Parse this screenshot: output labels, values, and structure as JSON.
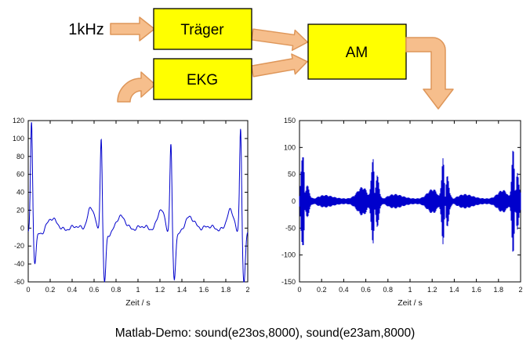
{
  "diagram": {
    "input_label": "1kHz",
    "blocks": [
      {
        "id": "traeger",
        "label": "Träger"
      },
      {
        "id": "ekg",
        "label": "EKG"
      },
      {
        "id": "am",
        "label": "AM"
      }
    ],
    "block_fill": "#FFFF00",
    "block_border": "#000000",
    "arrow_fill": "#F6BE8C",
    "arrow_stroke": "#DE9659"
  },
  "caption": "Matlab-Demo: sound(e23os,8000), sound(e23am,8000)",
  "chart_data": [
    {
      "id": "ekg-plot",
      "type": "line",
      "title": "",
      "xlabel": "Zeit / s",
      "ylabel": "",
      "xlim": [
        0,
        2
      ],
      "ylim": [
        -60,
        120
      ],
      "xticks": [
        0,
        0.2,
        0.4,
        0.6,
        0.8,
        1,
        1.2,
        1.4,
        1.6,
        1.8,
        2
      ],
      "xtick_labels": [
        "0",
        "0.2",
        "0.4",
        "0.6",
        "0.8",
        "1",
        "1.2",
        "1.4",
        "1.6",
        "1.8",
        "2"
      ],
      "yticks": [
        -60,
        -40,
        -20,
        0,
        20,
        40,
        60,
        80,
        100,
        120
      ],
      "grid": false,
      "legend": null,
      "line_color": "#0000CC",
      "signal": "ekg",
      "description": "ECG waveform, 4 heartbeats in 2 s, R-peaks near t = 0.03, 0.67, 1.30, 1.94 s",
      "beats": [
        {
          "t": 0.03,
          "r": 118,
          "s": -36,
          "p": 0,
          "tw": 10
        },
        {
          "t": 0.665,
          "r": 103,
          "s": -57,
          "p": 24,
          "tw": 12
        },
        {
          "t": 1.3,
          "r": 97,
          "s": -52,
          "p": 20,
          "tw": 12
        },
        {
          "t": 1.935,
          "r": 117,
          "s": -57,
          "p": 18,
          "tw": 10
        }
      ]
    },
    {
      "id": "am-plot",
      "type": "line",
      "title": "",
      "xlabel": "Zeit / s",
      "ylabel": "",
      "xlim": [
        0,
        2
      ],
      "ylim": [
        -150,
        150
      ],
      "xticks": [
        0,
        0.2,
        0.4,
        0.6,
        0.8,
        1,
        1.2,
        1.4,
        1.6,
        1.8,
        2
      ],
      "xtick_labels": [
        "0",
        "0.2",
        "0.4",
        "0.6",
        "0.8",
        "1",
        "1.2",
        "1.4",
        "1.6",
        "1.8",
        "2"
      ],
      "yticks": [
        -150,
        -100,
        -50,
        0,
        50,
        100,
        150
      ],
      "grid": false,
      "legend": null,
      "line_color": "#0000CC",
      "signal": "am",
      "description": "1 kHz carrier amplitude-modulated by the ECG signal; burst envelope follows |ECG|, peaks ~±100-115",
      "carrier_hz": 1000,
      "envelope_scale": 0.92,
      "baseline_amp": 5
    }
  ]
}
